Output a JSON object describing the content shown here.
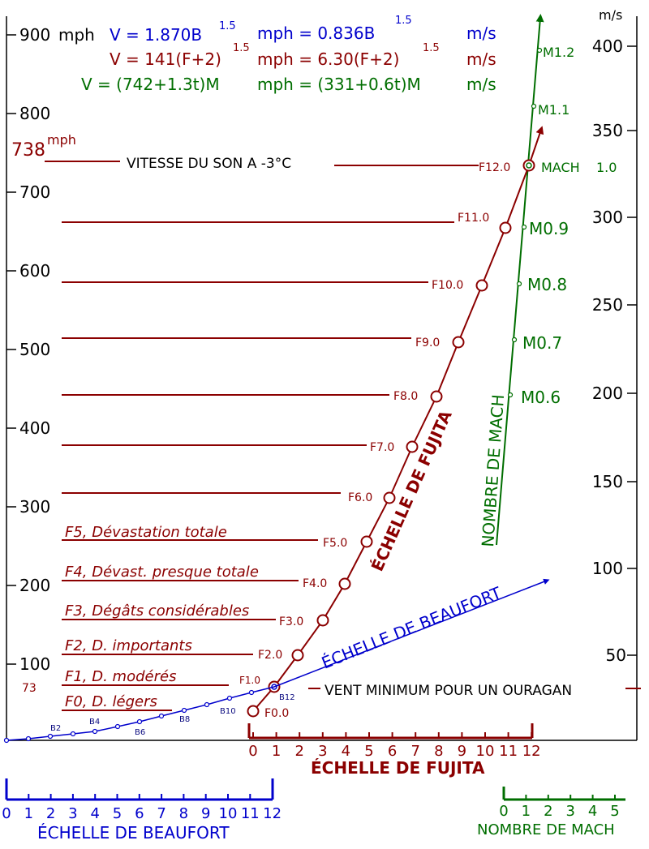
{
  "formulas": {
    "beaufort": {
      "v": "V =  1.870B",
      "exp1": "1.5",
      "mph": "mph =  0.836B",
      "exp2": "1.5",
      "ms": "m/s"
    },
    "fujita": {
      "v": "V =  141(F+2)",
      "exp1": "1.5",
      "mph": "mph =  6.30(F+2)",
      "exp2": "1.5",
      "ms": "m/s"
    },
    "mach": {
      "v": "V = (742+1.3t)M",
      "mph": "mph = (331+0.6t)M",
      "ms": "m/s"
    }
  },
  "left_axis": {
    "unit": "mph",
    "ticks": [
      "900",
      "800",
      "700",
      "600",
      "500",
      "400",
      "300",
      "200",
      "100"
    ],
    "sound_value": "738",
    "sound_unit": "mph",
    "hurricane_value": "73"
  },
  "right_axis": {
    "unit": "m/s",
    "ticks": [
      "400",
      "350",
      "300",
      "250",
      "200",
      "150",
      "100",
      "50"
    ]
  },
  "annotations": {
    "speed_of_sound": "VITESSE DU SON A -3°C",
    "hurricane_min": "VENT MINIMUM POUR UN OURAGAN",
    "mach_1": "MACH",
    "mach_1_value": "1.0"
  },
  "fujita_points": [
    "F0.0",
    "F1.0",
    "F2.0",
    "F3.0",
    "F4.0",
    "F5.0",
    "F6.0",
    "F7.0",
    "F8.0",
    "F9.0",
    "F10.0",
    "F11.0",
    "F12.0"
  ],
  "beaufort_labels": [
    "B2",
    "B4",
    "B6",
    "B8",
    "B10",
    "B12"
  ],
  "mach_points": [
    "M0.6",
    "M0.7",
    "M0.8",
    "M0.9",
    "M1.1",
    "M1.2"
  ],
  "damage_labels": [
    "F0, D. légers",
    "F1, D. modérés",
    "F2, D. importants",
    "F3, Dégâts considérables",
    "F4, Dévast. presque totale",
    "F5, Dévastation totale"
  ],
  "curve_titles": {
    "fujita": "ÉCHELLE DE FUJITA",
    "beaufort": "ÉCHELLE DE BEAUFORT",
    "mach": "NOMBRE DE MACH"
  },
  "scales": {
    "fujita": {
      "title": "ÉCHELLE DE FUJITA",
      "ticks": [
        "0",
        "1",
        "2",
        "3",
        "4",
        "5",
        "6",
        "7",
        "8",
        "9",
        "10",
        "11",
        "12"
      ]
    },
    "beaufort": {
      "title": "ÉCHELLE DE BEAUFORT",
      "ticks": [
        "0",
        "1",
        "2",
        "3",
        "4",
        "5",
        "6",
        "7",
        "8",
        "9",
        "10",
        "11",
        "12"
      ]
    },
    "mach": {
      "title": "NOMBRE DE MACH",
      "ticks": [
        "0",
        "1",
        "2",
        "3",
        "4",
        "5"
      ]
    }
  },
  "colors": {
    "fujita": "#8b0000",
    "beaufort": "#0000cc",
    "mach": "#006e00",
    "axis": "#000000"
  }
}
